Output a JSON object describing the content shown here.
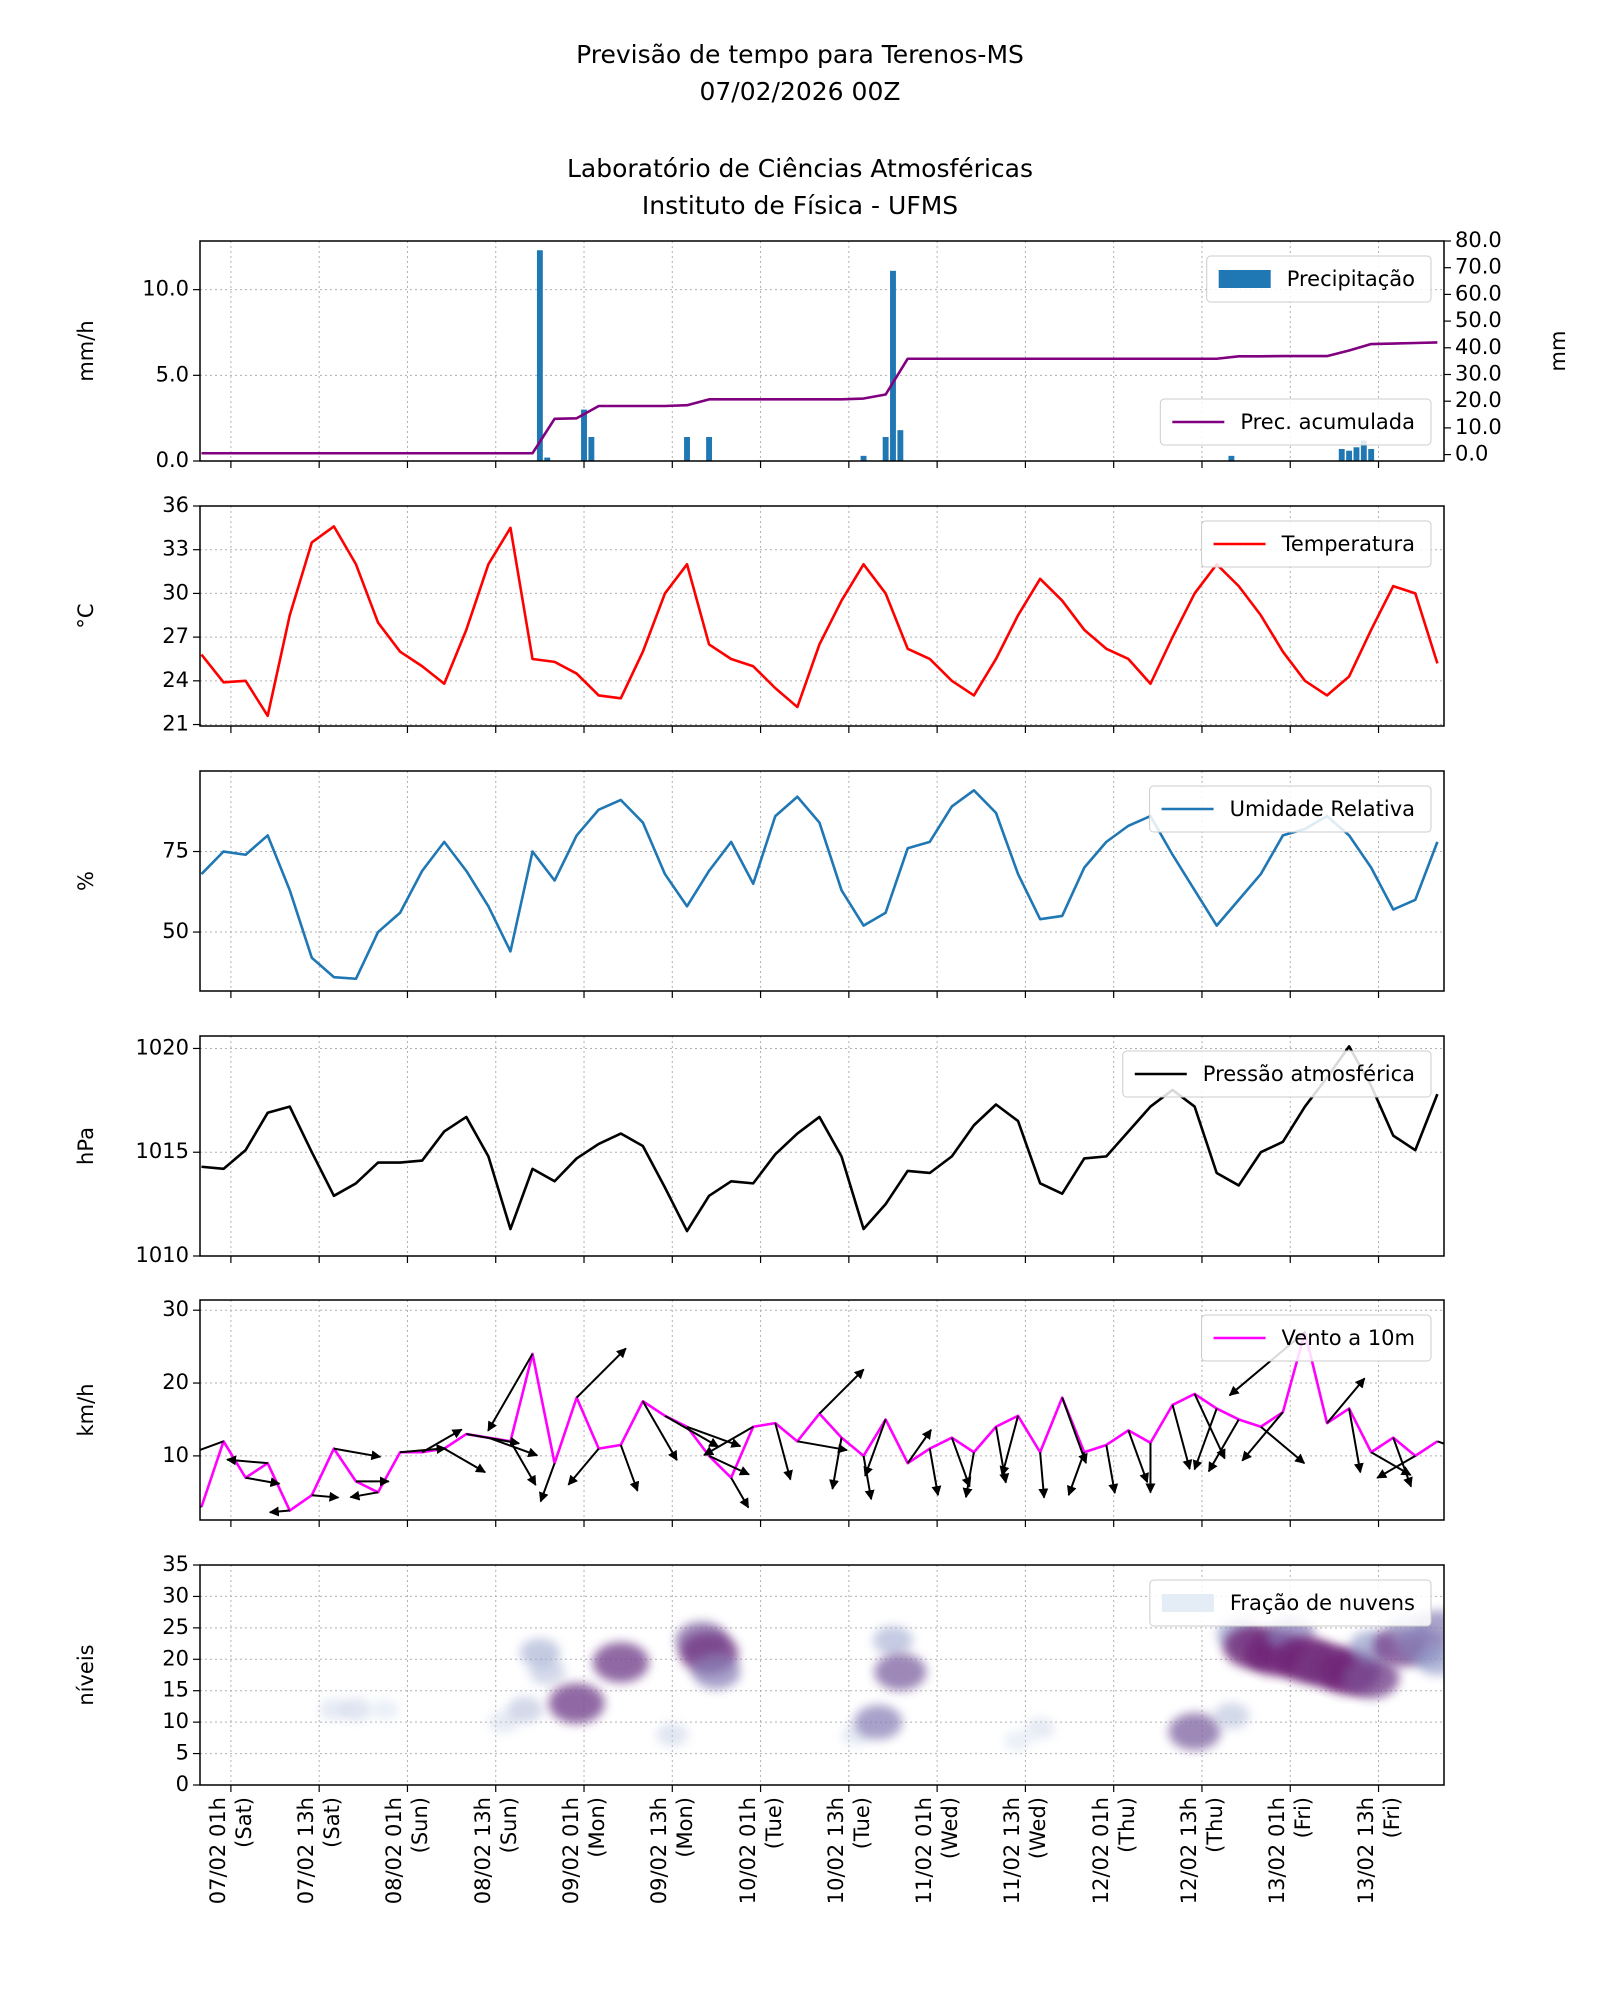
{
  "header": {
    "title": "Previsão de tempo para Terenos-MS",
    "date": "07/02/2026 00Z",
    "lab": "Laboratório de Ciências Atmosféricas",
    "institute": "Instituto de Física - UFMS"
  },
  "chart_data": [
    {
      "type": "bar",
      "ylabel": "mm/h",
      "y2label": "mm",
      "grid": true,
      "ylim": [
        0,
        12.84
      ],
      "yticks": [
        {
          "value": 0,
          "label": "0.0"
        },
        {
          "value": 5,
          "label": "5.0"
        },
        {
          "value": 10,
          "label": "10.0"
        }
      ],
      "y2lim": [
        -2.4,
        80
      ],
      "y2ticks": [
        {
          "value": 0,
          "label": "0.0"
        },
        {
          "value": 10,
          "label": "10.0"
        },
        {
          "value": 20,
          "label": "20.0"
        },
        {
          "value": 30,
          "label": "30.0"
        },
        {
          "value": 40,
          "label": "40.0"
        },
        {
          "value": 50,
          "label": "50.0"
        },
        {
          "value": 60,
          "label": "60.0"
        },
        {
          "value": 70,
          "label": "70.0"
        },
        {
          "value": 80,
          "label": "80.0"
        }
      ],
      "series": [
        {
          "name": "Precipitação",
          "type": "bar",
          "color": "#1f77b4",
          "legend": "upper right",
          "x": [
            43,
            44,
            49,
            50,
            63,
            66,
            87,
            90,
            91,
            92,
            137,
            152,
            153,
            154,
            155,
            156
          ],
          "values": [
            12.3,
            0.2,
            3.0,
            1.4,
            1.4,
            1.4,
            0.3,
            1.4,
            11.1,
            1.8,
            0.3,
            0.7,
            0.6,
            0.8,
            1.2,
            0.7
          ]
        },
        {
          "name": "Prec. acumulada",
          "type": "line",
          "axis": "y2",
          "color": "purple",
          "legend": "lower right",
          "x": [
            -3,
            0,
            3,
            6,
            9,
            12,
            15,
            18,
            21,
            24,
            27,
            30,
            33,
            36,
            39,
            42,
            45,
            48,
            51,
            54,
            57,
            60,
            63,
            66,
            69,
            72,
            75,
            78,
            81,
            84,
            87,
            90,
            93,
            96,
            99,
            102,
            105,
            108,
            111,
            114,
            117,
            120,
            123,
            126,
            129,
            132,
            135,
            138,
            141,
            144,
            147,
            150,
            153,
            156,
            159,
            162,
            165
          ],
          "values": [
            0.5,
            0.5,
            0.5,
            0.5,
            0.5,
            0.5,
            0.5,
            0.5,
            0.5,
            0.5,
            0.5,
            0.5,
            0.5,
            0.5,
            0.5,
            0.5,
            13.4,
            13.6,
            18.2,
            18.2,
            18.2,
            18.2,
            18.5,
            20.7,
            20.7,
            20.7,
            20.7,
            20.7,
            20.7,
            20.7,
            21,
            22.5,
            35.9,
            35.9,
            35.9,
            35.9,
            35.9,
            35.9,
            35.9,
            35.9,
            35.9,
            35.9,
            35.9,
            35.9,
            35.9,
            35.9,
            35.9,
            36.8,
            36.8,
            36.9,
            36.9,
            36.9,
            39,
            41.4,
            41.6,
            41.8,
            42
          ]
        }
      ]
    },
    {
      "type": "line",
      "ylabel": "°C",
      "grid": true,
      "ylim": [
        20.9,
        36
      ],
      "yticks": [
        21,
        24,
        27,
        30,
        33,
        36
      ],
      "series": [
        {
          "name": "Temperatura",
          "color": "red",
          "legend": "upper right",
          "x": [
            -3,
            0,
            3,
            6,
            9,
            12,
            15,
            18,
            21,
            24,
            27,
            30,
            33,
            36,
            39,
            42,
            45,
            48,
            51,
            54,
            57,
            60,
            63,
            66,
            69,
            72,
            75,
            78,
            81,
            84,
            87,
            90,
            93,
            96,
            99,
            102,
            105,
            108,
            111,
            114,
            117,
            120,
            123,
            126,
            129,
            132,
            135,
            138,
            141,
            144,
            147,
            150,
            153,
            156,
            159,
            162,
            165
          ],
          "values": [
            25.8,
            23.9,
            24.0,
            21.6,
            28.5,
            33.5,
            34.6,
            32,
            28,
            26,
            25,
            23.8,
            27.5,
            32,
            34.5,
            25.5,
            25.3,
            24.5,
            23,
            22.8,
            26,
            30,
            32,
            26.5,
            25.5,
            25,
            23.5,
            22.2,
            26.5,
            29.5,
            32,
            30,
            26.2,
            25.5,
            24,
            23,
            25.5,
            28.5,
            31,
            29.5,
            27.5,
            26.2,
            25.5,
            23.8,
            27,
            30,
            32,
            30.5,
            28.5,
            26,
            24,
            23,
            24.3,
            27.5,
            30.5,
            30,
            25.2
          ]
        }
      ]
    },
    {
      "type": "line",
      "ylabel": "%",
      "grid": true,
      "ylim": [
        31.7,
        100
      ],
      "yticks": [
        50,
        75
      ],
      "series": [
        {
          "name": "Umidade Relativa",
          "color": "#1f77b4",
          "legend": "upper right",
          "x": [
            -3,
            0,
            3,
            6,
            9,
            12,
            15,
            18,
            21,
            24,
            27,
            30,
            33,
            36,
            39,
            42,
            45,
            48,
            51,
            54,
            57,
            60,
            63,
            66,
            69,
            72,
            75,
            78,
            81,
            84,
            87,
            90,
            93,
            96,
            99,
            102,
            105,
            108,
            111,
            114,
            117,
            120,
            123,
            126,
            129,
            132,
            135,
            138,
            141,
            144,
            147,
            150,
            153,
            156,
            159,
            162,
            165
          ],
          "values": [
            68,
            75,
            74,
            80,
            63,
            42,
            36,
            35.5,
            50,
            56,
            69,
            78,
            69,
            58,
            44,
            75,
            66,
            80,
            88,
            91,
            84,
            68,
            58,
            69,
            78,
            65,
            86,
            92,
            84,
            63,
            52,
            56,
            76,
            78,
            89,
            94,
            87,
            68,
            54,
            55,
            70,
            78,
            83,
            86,
            74,
            63,
            52,
            60,
            68,
            80,
            82,
            86,
            80,
            70,
            57,
            60,
            78
          ]
        }
      ]
    },
    {
      "type": "line",
      "ylabel": "hPa",
      "grid": true,
      "ylim": [
        1010,
        1020.6
      ],
      "yticks": [
        1010,
        1015,
        1020
      ],
      "series": [
        {
          "name": "Pressão atmosférica",
          "color": "black",
          "legend": "upper right",
          "x": [
            -3,
            0,
            3,
            6,
            9,
            12,
            15,
            18,
            21,
            24,
            27,
            30,
            33,
            36,
            39,
            42,
            45,
            48,
            51,
            54,
            57,
            60,
            63,
            66,
            69,
            72,
            75,
            78,
            81,
            84,
            87,
            90,
            93,
            96,
            99,
            102,
            105,
            108,
            111,
            114,
            117,
            120,
            123,
            126,
            129,
            132,
            135,
            138,
            141,
            144,
            147,
            150,
            153,
            156,
            159,
            162,
            165
          ],
          "values": [
            1014.3,
            1014.2,
            1015.1,
            1016.9,
            1017.2,
            1015,
            1012.9,
            1013.5,
            1014.5,
            1014.5,
            1014.6,
            1016,
            1016.7,
            1014.8,
            1011.3,
            1014.2,
            1013.6,
            1014.7,
            1015.4,
            1015.9,
            1015.3,
            1013.3,
            1011.2,
            1012.9,
            1013.6,
            1013.5,
            1014.9,
            1015.9,
            1016.7,
            1014.8,
            1011.3,
            1012.5,
            1014.1,
            1014,
            1014.8,
            1016.3,
            1017.3,
            1016.5,
            1013.5,
            1013,
            1014.7,
            1014.8,
            1016,
            1017.2,
            1018,
            1017.2,
            1014,
            1013.4,
            1015,
            1015.5,
            1017.2,
            1018.6,
            1020.1,
            1018.2,
            1015.8,
            1015.1,
            1017.8
          ]
        }
      ]
    },
    {
      "type": "line",
      "ylabel": "km/h",
      "grid": true,
      "ylim": [
        1.2,
        31.4
      ],
      "yticks": [
        10,
        20,
        30
      ],
      "series": [
        {
          "name": "Vento a 10m",
          "color": "magenta",
          "legend": "upper right",
          "x": [
            -3,
            0,
            3,
            6,
            9,
            12,
            15,
            18,
            21,
            24,
            27,
            30,
            33,
            36,
            39,
            42,
            45,
            48,
            51,
            54,
            57,
            60,
            63,
            66,
            69,
            72,
            75,
            78,
            81,
            84,
            87,
            90,
            93,
            96,
            99,
            102,
            105,
            108,
            111,
            114,
            117,
            120,
            123,
            126,
            129,
            132,
            135,
            138,
            141,
            144,
            147,
            150,
            153,
            156,
            159,
            162,
            165
          ],
          "values": [
            3,
            12,
            7,
            9,
            2.5,
            4.6,
            11,
            6.5,
            5,
            10.5,
            10.5,
            11,
            13,
            12.5,
            12,
            24,
            9,
            18,
            11,
            11.5,
            17.5,
            15.5,
            14,
            10,
            7,
            14,
            14.5,
            12,
            15.8,
            12.5,
            10,
            15,
            9,
            11,
            12.5,
            10.5,
            14,
            15.5,
            10.5,
            18,
            10.5,
            11.5,
            13.5,
            11.8,
            17,
            18.5,
            16.5,
            15,
            14,
            16,
            27,
            14.5,
            16.5,
            10.5,
            12.5,
            10,
            12
          ],
          "directions": [
            280,
            250,
            100,
            275,
            265,
            95,
            100,
            90,
            260,
            85,
            60,
            120,
            100,
            110,
            150,
            210,
            200,
            45,
            220,
            160,
            150,
            120,
            110,
            115,
            150,
            240,
            165,
            100,
            45,
            190,
            170,
            200,
            35,
            170,
            160,
            190,
            170,
            195,
            175,
            160,
            200,
            170,
            160,
            180,
            165,
            155,
            200,
            210,
            130,
            220,
            230,
            40,
            170,
            120,
            160,
            240,
            110
          ]
        }
      ]
    },
    {
      "type": "contour",
      "ylabel": "níveis",
      "grid": true,
      "ylim": [
        0,
        35
      ],
      "yticks": [
        0,
        5,
        10,
        15,
        20,
        25,
        30,
        35
      ],
      "xlim": [
        -3.2,
        165.9
      ],
      "xticks": [
        {
          "value": 1,
          "label": "07/02 01h\n(Sat)"
        },
        {
          "value": 13,
          "label": "07/02 13h\n(Sat)"
        },
        {
          "value": 25,
          "label": "08/02 01h\n(Sun)"
        },
        {
          "value": 37,
          "label": "08/02 13h\n(Sun)"
        },
        {
          "value": 49,
          "label": "09/02 01h\n(Mon)"
        },
        {
          "value": 61,
          "label": "09/02 13h\n(Mon)"
        },
        {
          "value": 73,
          "label": "10/02 01h\n(Tue)"
        },
        {
          "value": 85,
          "label": "10/02 13h\n(Tue)"
        },
        {
          "value": 97,
          "label": "11/02 01h\n(Wed)"
        },
        {
          "value": 109,
          "label": "11/02 13h\n(Wed)"
        },
        {
          "value": 121,
          "label": "12/02 01h\n(Thu)"
        },
        {
          "value": 133,
          "label": "12/02 13h\n(Thu)"
        },
        {
          "value": 145,
          "label": "13/02 01h\n(Fri)"
        },
        {
          "value": 157,
          "label": "13/02 13h\n(Fri)"
        }
      ],
      "series": [
        {
          "name": "Fração de nuvens",
          "color": "#e4ecf6",
          "legend": "upper right",
          "x": [
            15,
            18,
            22,
            38,
            41,
            43,
            44,
            48,
            54,
            61,
            65,
            66,
            67,
            86,
            89,
            91,
            92,
            108,
            111,
            132,
            137,
            138,
            140,
            143,
            145,
            147,
            150,
            153,
            156,
            156,
            160,
            161,
            163,
            165,
            165
          ],
          "levels": [
            12,
            12,
            12,
            10,
            12,
            21,
            18,
            13,
            19.5,
            8,
            23,
            21,
            18,
            8,
            10,
            23,
            18,
            7,
            9,
            8.5,
            11,
            24,
            22,
            21,
            24,
            20,
            19,
            18,
            17,
            22,
            22,
            25,
            22,
            20,
            25
          ],
          "values": [
            0.15,
            0.2,
            0.1,
            0.15,
            0.3,
            0.4,
            0.3,
            0.8,
            0.8,
            0.2,
            0.7,
            0.85,
            0.6,
            0.15,
            0.6,
            0.4,
            0.7,
            0.1,
            0.15,
            0.7,
            0.3,
            0.5,
            0.9,
            0.95,
            0.6,
            0.95,
            0.9,
            0.95,
            0.8,
            0.5,
            0.8,
            0.4,
            0.6,
            0.5,
            0.6
          ]
        }
      ]
    }
  ]
}
